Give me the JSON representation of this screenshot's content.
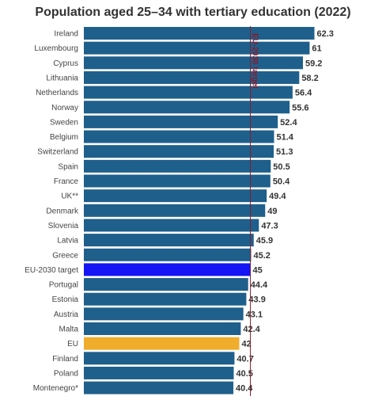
{
  "chart_data": {
    "type": "bar",
    "orientation": "horizontal",
    "title": "Population aged 25–34 with tertiary education (2022)",
    "categories": [
      "Ireland",
      "Luxembourg",
      "Cyprus",
      "Lithuania",
      "Netherlands",
      "Norway",
      "Sweden",
      "Belgium",
      "Switzerland",
      "Spain",
      "France",
      "UK**",
      "Denmark",
      "Slovenia",
      "Latvia",
      "Greece",
      "EU-2030 target",
      "Portugal",
      "Estonia",
      "Austria",
      "Malta",
      "EU",
      "Finland",
      "Poland",
      "Montenegro*"
    ],
    "values": [
      62.3,
      61,
      59.2,
      58.2,
      56.4,
      55.6,
      52.4,
      51.4,
      51.3,
      50.5,
      50.4,
      49.4,
      49,
      47.3,
      45.9,
      45.2,
      45,
      44.4,
      43.9,
      43.1,
      42.4,
      42,
      40.7,
      40.5,
      40.4
    ],
    "value_labels": [
      "62.3",
      "61",
      "59.2",
      "58.2",
      "56.4",
      "55.6",
      "52.4",
      "51.4",
      "51.3",
      "50.5",
      "50.4",
      "49.4",
      "49",
      "47.3",
      "45.9",
      "45.2",
      "45",
      "44.4",
      "43.9",
      "43.1",
      "42.4",
      "42",
      "40.7",
      "40.5",
      "40.4"
    ],
    "xlim": [
      0,
      66
    ],
    "target_line": {
      "value": 45,
      "label": "EU-2030 target"
    },
    "colors": {
      "default": "#1f5f8b",
      "target": "#1414f5",
      "eu": "#f0ad2c",
      "target_line": "#8b1a2b"
    },
    "highlight": {
      "EU-2030 target": "target",
      "EU": "eu"
    },
    "grid": false,
    "legend": "none"
  }
}
